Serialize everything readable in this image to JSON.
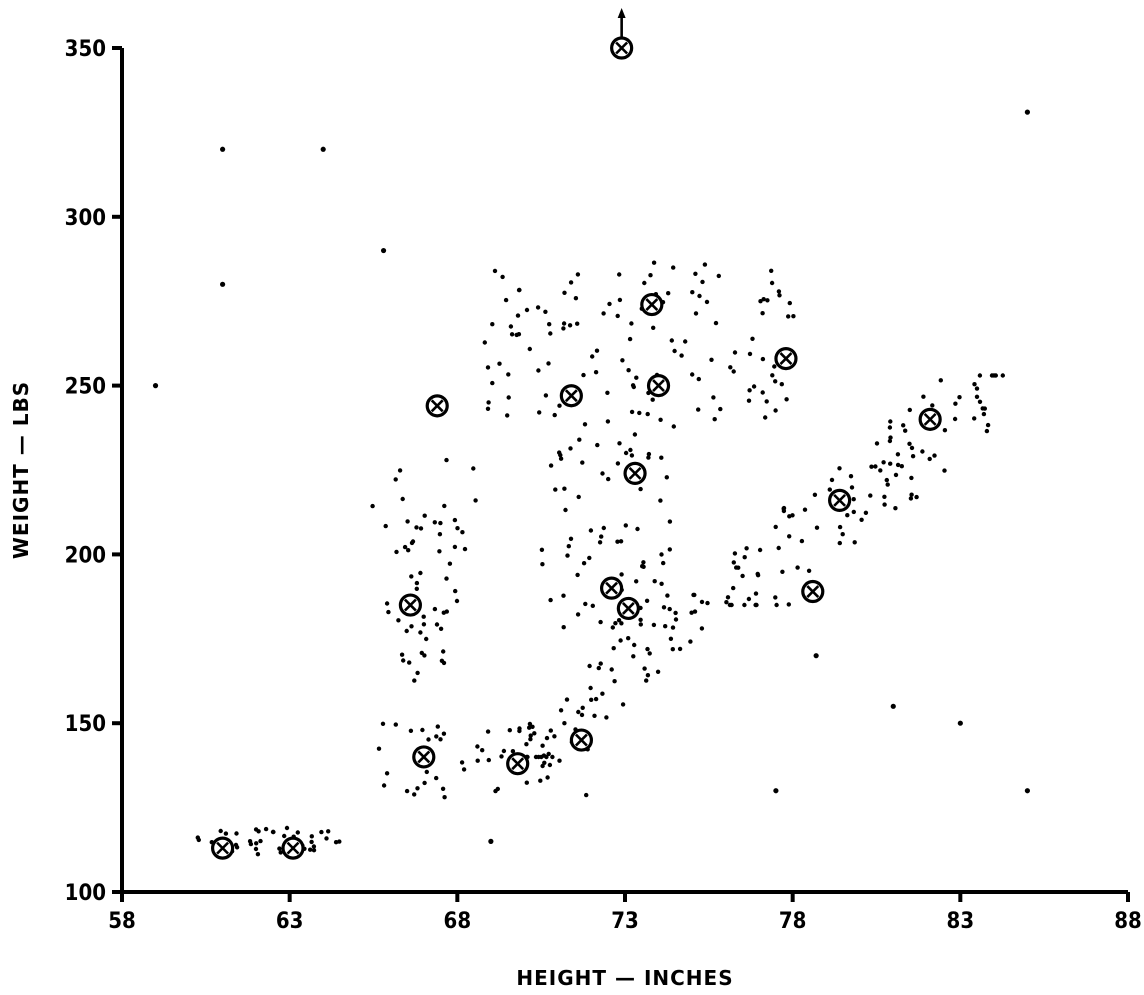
{
  "chart_data": {
    "type": "scatter",
    "title": "",
    "xlabel": "HEIGHT — INCHES",
    "ylabel": "WEIGHT — LBS",
    "xlim": [
      58,
      88
    ],
    "ylim": [
      100,
      350
    ],
    "xticks": [
      "58",
      "63",
      "68",
      "73",
      "78",
      "83",
      "88"
    ],
    "yticks": [
      "100",
      "150",
      "200",
      "250",
      "300",
      "350"
    ],
    "grid": false,
    "legend": "none",
    "colors": {
      "ink": "#000000",
      "background": "#ffffff"
    },
    "marker_styles": {
      "cluster_points": "dot",
      "cluster_centers": "circled-x",
      "outliers": "dot"
    },
    "cluster_centers": [
      {
        "x": 61.0,
        "y": 113,
        "above_axis_arrow": false
      },
      {
        "x": 63.1,
        "y": 113,
        "above_axis_arrow": false
      },
      {
        "x": 66.6,
        "y": 185,
        "above_axis_arrow": false
      },
      {
        "x": 67.4,
        "y": 244,
        "above_axis_arrow": false
      },
      {
        "x": 67.0,
        "y": 140,
        "above_axis_arrow": false
      },
      {
        "x": 69.8,
        "y": 138,
        "above_axis_arrow": false
      },
      {
        "x": 71.7,
        "y": 145,
        "above_axis_arrow": false
      },
      {
        "x": 71.4,
        "y": 247,
        "above_axis_arrow": false
      },
      {
        "x": 72.6,
        "y": 190,
        "above_axis_arrow": false
      },
      {
        "x": 73.1,
        "y": 184,
        "above_axis_arrow": false
      },
      {
        "x": 73.3,
        "y": 224,
        "above_axis_arrow": false
      },
      {
        "x": 73.8,
        "y": 274,
        "above_axis_arrow": false
      },
      {
        "x": 74.0,
        "y": 250,
        "above_axis_arrow": false
      },
      {
        "x": 72.9,
        "y": 350,
        "above_axis_arrow": true
      },
      {
        "x": 77.8,
        "y": 258,
        "above_axis_arrow": false
      },
      {
        "x": 78.6,
        "y": 189,
        "above_axis_arrow": false
      },
      {
        "x": 79.4,
        "y": 216,
        "above_axis_arrow": false
      },
      {
        "x": 82.1,
        "y": 240,
        "above_axis_arrow": false
      }
    ],
    "outliers": [
      {
        "x": 61.0,
        "y": 320
      },
      {
        "x": 64.0,
        "y": 320
      },
      {
        "x": 61.0,
        "y": 280
      },
      {
        "x": 59.0,
        "y": 250
      },
      {
        "x": 65.8,
        "y": 290
      },
      {
        "x": 69.0,
        "y": 115
      },
      {
        "x": 77.5,
        "y": 130
      },
      {
        "x": 78.7,
        "y": 170
      },
      {
        "x": 81.0,
        "y": 155
      },
      {
        "x": 83.0,
        "y": 150
      },
      {
        "x": 85.0,
        "y": 130
      },
      {
        "x": 85.0,
        "y": 331
      }
    ],
    "clusters": [
      {
        "x_range": [
          60.2,
          64.5
        ],
        "y_range": [
          111,
          119
        ],
        "n": 48,
        "shape": "box"
      },
      {
        "x_range": [
          64.5,
          68.2
        ],
        "y_range": [
          162,
          230
        ],
        "n": 60,
        "shape": "wedge"
      },
      {
        "x_range": [
          65.5,
          72.0
        ],
        "y_range": [
          128,
          150
        ],
        "n": 55,
        "shape": "box"
      },
      {
        "x_range": [
          70.0,
          75.5
        ],
        "y_range": [
          140,
          188
        ],
        "n": 60,
        "shape": "diagonal"
      },
      {
        "x_range": [
          70.5,
          74.5
        ],
        "y_range": [
          178,
          240
        ],
        "n": 75,
        "shape": "box"
      },
      {
        "x_range": [
          68.8,
          78.2
        ],
        "y_range": [
          240,
          288
        ],
        "n": 125,
        "shape": "box"
      },
      {
        "x_range": [
          76.0,
          84.3
        ],
        "y_range": [
          185,
          253
        ],
        "n": 110,
        "shape": "diagonal"
      }
    ]
  }
}
